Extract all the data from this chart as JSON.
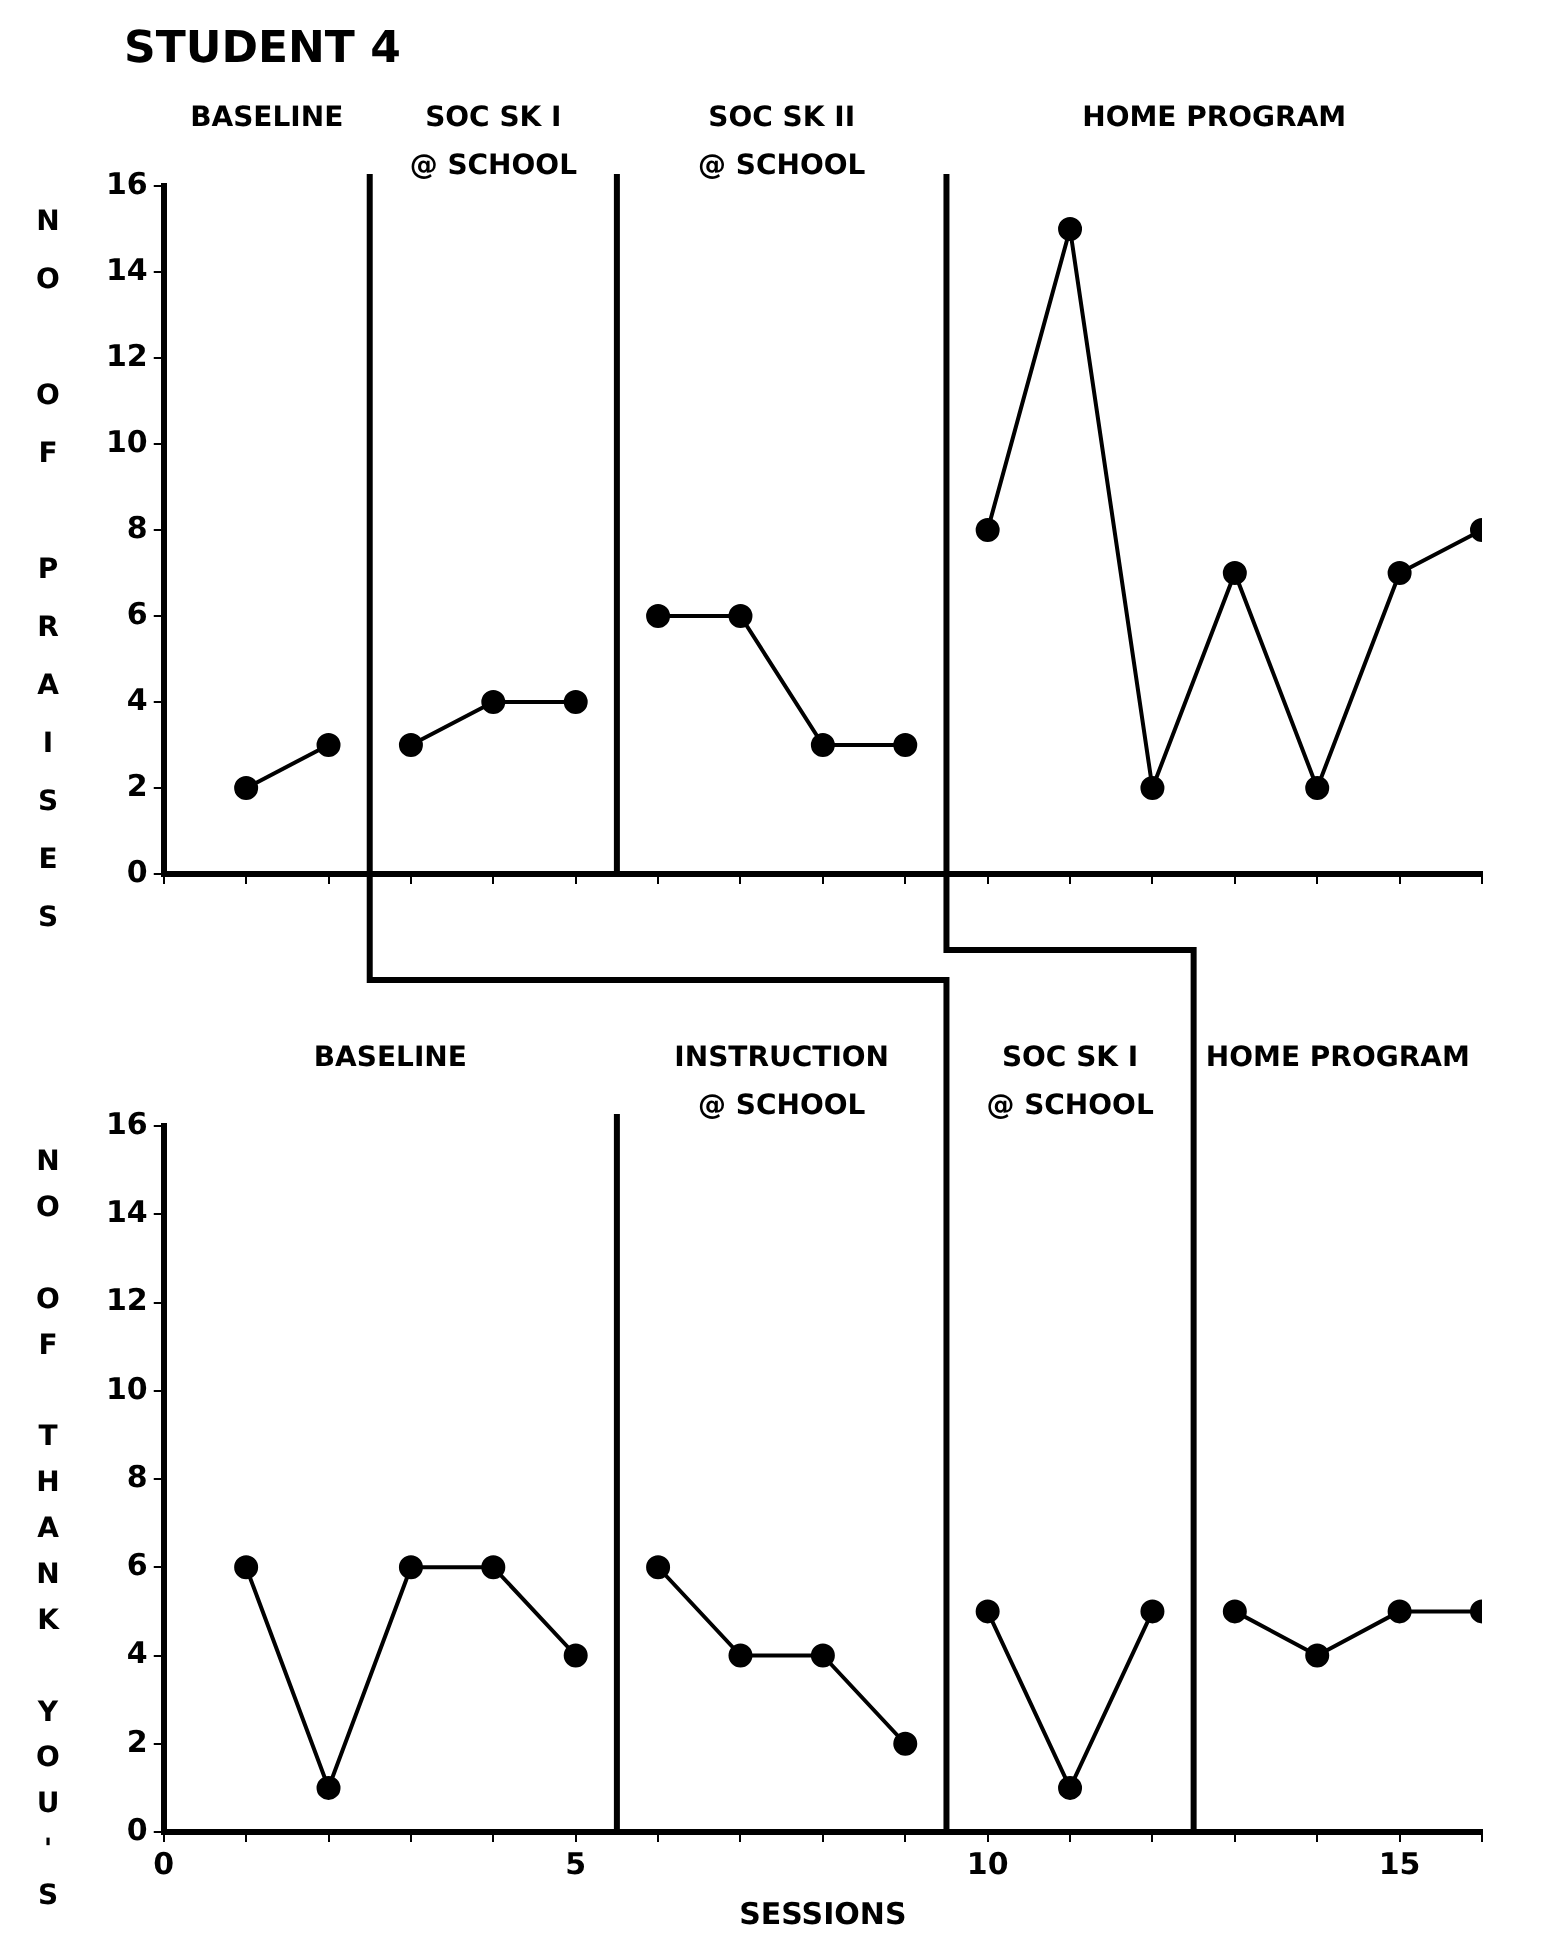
{
  "chart_data": [
    {
      "type": "line",
      "title": "STUDENT 4",
      "ylabel": "NO OF PRAISES",
      "xlim": [
        0,
        16
      ],
      "ylim": [
        0,
        16
      ],
      "yticks": [
        0,
        2,
        4,
        6,
        8,
        10,
        12,
        14,
        16
      ],
      "xticks": [
        0,
        {
          "value": 1,
          "label": null
        },
        {
          "value": 2,
          "label": null
        },
        {
          "value": 3,
          "label": null
        },
        {
          "value": 4,
          "label": null
        },
        5,
        {
          "value": 6,
          "label": null
        },
        {
          "value": 7,
          "label": null
        },
        {
          "value": 8,
          "label": null
        },
        {
          "value": 9,
          "label": null
        },
        10,
        {
          "value": 11,
          "label": null
        },
        {
          "value": 12,
          "label": null
        },
        {
          "value": 13,
          "label": null
        },
        {
          "value": 14,
          "label": null
        },
        15,
        {
          "value": 16,
          "label": null
        }
      ],
      "tick_labels": "y",
      "marker": "circle",
      "line_style": "solid",
      "series": [
        {
          "color": "#000000",
          "x": [
            1,
            2
          ],
          "values": [
            2,
            3
          ]
        },
        {
          "color": "#000000",
          "x": [
            3,
            4,
            5
          ],
          "values": [
            3,
            4,
            4
          ]
        },
        {
          "color": "#000000",
          "x": [
            6,
            7,
            8,
            9
          ],
          "values": [
            6,
            6,
            3,
            3
          ]
        },
        {
          "color": "#000000",
          "x": [
            10,
            11,
            12,
            13,
            14,
            15,
            16
          ],
          "values": [
            8,
            15,
            2,
            7,
            2,
            7,
            8
          ]
        }
      ],
      "ref_lines": [
        {
          "axis": "x",
          "value": 2.5,
          "color": "#000000"
        },
        {
          "axis": "x",
          "value": 5.5,
          "color": "#000000"
        },
        {
          "axis": "x",
          "value": 9.5,
          "color": "#000000"
        }
      ],
      "annotations": [
        "BASELINE",
        "SOC SK I\n@ SCHOOL",
        "SOC SK II\n@ SCHOOL",
        "HOME PROGRAM"
      ]
    },
    {
      "type": "line",
      "ylabel": "NO OF THANK YOU'S",
      "xlabel": "SESSIONS",
      "xlim": [
        0,
        16
      ],
      "ylim": [
        0,
        16
      ],
      "yticks": [
        0,
        2,
        4,
        6,
        8,
        10,
        12,
        14,
        16
      ],
      "xticks": [
        0,
        {
          "value": 1,
          "label": null
        },
        {
          "value": 2,
          "label": null
        },
        {
          "value": 3,
          "label": null
        },
        {
          "value": 4,
          "label": null
        },
        5,
        {
          "value": 6,
          "label": null
        },
        {
          "value": 7,
          "label": null
        },
        {
          "value": 8,
          "label": null
        },
        {
          "value": 9,
          "label": null
        },
        10,
        {
          "value": 11,
          "label": null
        },
        {
          "value": 12,
          "label": null
        },
        {
          "value": 13,
          "label": null
        },
        {
          "value": 14,
          "label": null
        },
        15,
        {
          "value": 16,
          "label": null
        }
      ],
      "marker": "circle",
      "line_style": "solid",
      "series": [
        {
          "color": "#000000",
          "x": [
            1,
            2,
            3,
            4,
            5
          ],
          "values": [
            6,
            1,
            6,
            6,
            4
          ]
        },
        {
          "color": "#000000",
          "x": [
            6,
            7,
            8,
            9
          ],
          "values": [
            6,
            4,
            4,
            2
          ]
        },
        {
          "color": "#000000",
          "x": [
            10,
            11,
            12
          ],
          "values": [
            5,
            1,
            5
          ]
        },
        {
          "color": "#000000",
          "x": [
            13,
            14,
            15,
            16
          ],
          "values": [
            5,
            4,
            5,
            5
          ]
        }
      ],
      "ref_lines": [
        {
          "axis": "x",
          "value": 5.5,
          "color": "#000000"
        },
        {
          "axis": "x",
          "value": 9.5,
          "color": "#000000"
        },
        {
          "axis": "x",
          "value": 12.5,
          "color": "#000000"
        }
      ],
      "annotations": [
        "BASELINE",
        "INSTRUCTION\n@ SCHOOL",
        "SOC SK I\n@ SCHOOL",
        "HOME PROGRAM"
      ]
    }
  ]
}
